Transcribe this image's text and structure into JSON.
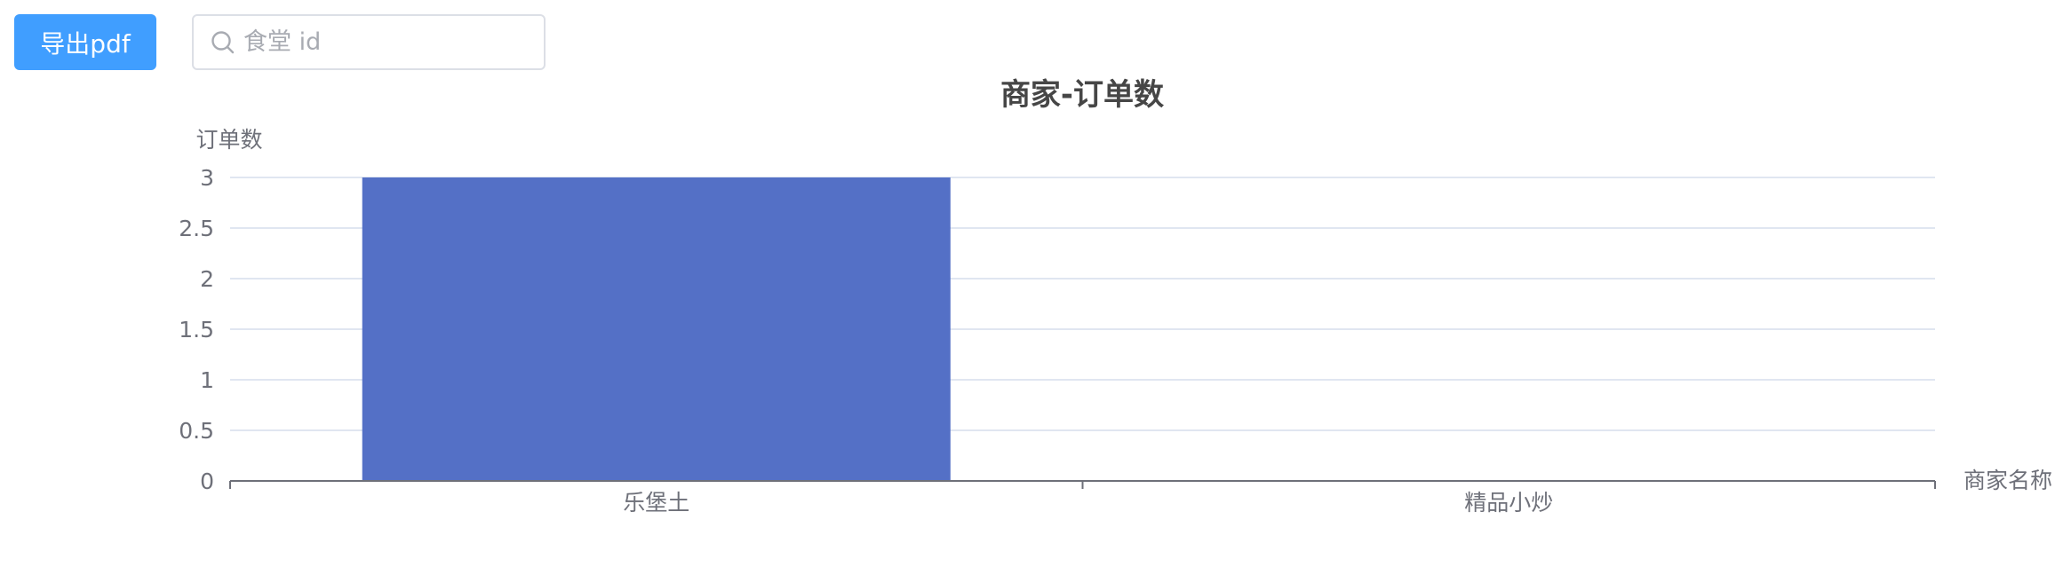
{
  "toolbar": {
    "export_label": "导出pdf",
    "search_placeholder": "食堂 id",
    "search_value": ""
  },
  "colors": {
    "primary": "#409eff",
    "bar": "#5470c6",
    "title": "#464646",
    "axis_text": "#6e7079",
    "grid": "#e0e6f1",
    "axis_line": "#6e7079"
  },
  "chart_data": {
    "type": "bar",
    "title": "商家-订单数",
    "xlabel": "商家名称",
    "ylabel": "订单数",
    "categories": [
      "乐堡土",
      "精品小炒"
    ],
    "values": [
      3,
      0
    ],
    "ylim": [
      0,
      3
    ],
    "yticks": [
      "0",
      "0.5",
      "1",
      "1.5",
      "2",
      "2.5",
      "3"
    ],
    "grid": true,
    "legend": "none"
  }
}
